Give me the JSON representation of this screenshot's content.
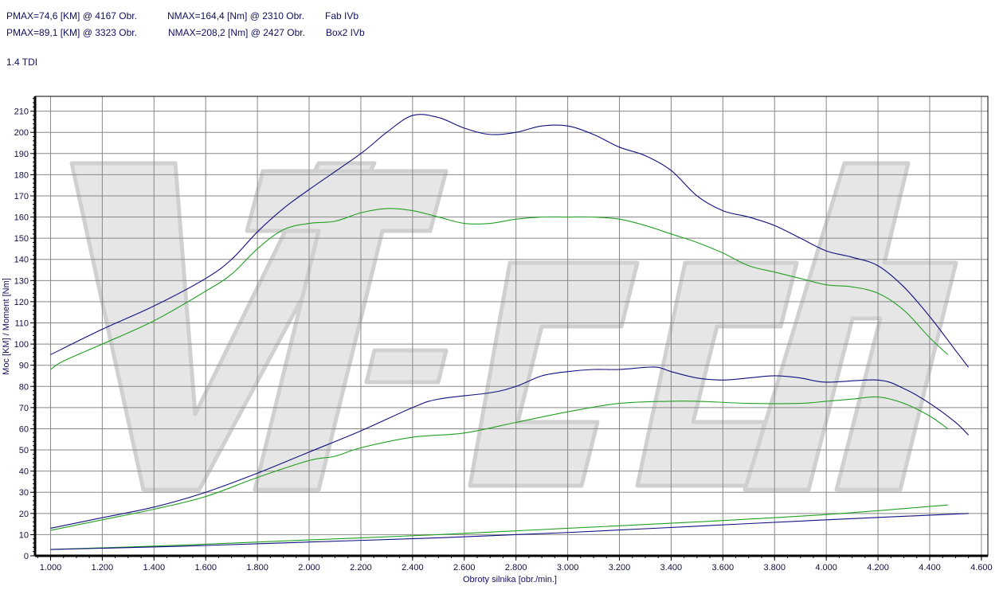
{
  "header": {
    "line1": {
      "pmax": "PMAX=74,6 [KM] @ 4167 Obr.",
      "nmax": "NMAX=164,4 [Nm] @ 2310 Obr.",
      "name": "Fab IVb"
    },
    "line2": {
      "pmax": "PMAX=89,1 [KM] @ 3323 Obr.",
      "nmax": "NMAX=208,2 [Nm] @ 2427 Obr.",
      "name": "Box2 IVb"
    },
    "engine": "1.4 TDI"
  },
  "watermark": "VTech",
  "chart_data": {
    "type": "line",
    "xlabel": "Obroty silnika [obr./min.]",
    "ylabel": "Moc [KM] / Moment [Nm]",
    "xlim": [
      940,
      4625
    ],
    "ylim": [
      0,
      217
    ],
    "xticks": [
      1000,
      1200,
      1400,
      1600,
      1800,
      2000,
      2200,
      2400,
      2600,
      2800,
      3000,
      3200,
      3400,
      3600,
      3800,
      4000,
      4200,
      4400,
      4600
    ],
    "xtick_labels": [
      "1.000",
      "1.200",
      "1.400",
      "1.600",
      "1.800",
      "2.000",
      "2.200",
      "2.400",
      "2.600",
      "2.800",
      "3.000",
      "3.200",
      "3.400",
      "3.600",
      "3.800",
      "4.000",
      "4.200",
      "4.400",
      "4.600"
    ],
    "yticks": [
      0,
      10,
      20,
      30,
      40,
      50,
      60,
      70,
      80,
      90,
      100,
      110,
      120,
      130,
      140,
      150,
      160,
      170,
      180,
      190,
      200,
      210
    ],
    "grid": true,
    "colors": {
      "box2": "#101080",
      "fab": "#22a022"
    },
    "series": [
      {
        "color": "#101080",
        "points": [
          [
            1000,
            95
          ],
          [
            1200,
            107
          ],
          [
            1400,
            118
          ],
          [
            1600,
            131
          ],
          [
            1700,
            140
          ],
          [
            1800,
            153
          ],
          [
            1900,
            164
          ],
          [
            2000,
            173
          ],
          [
            2200,
            190
          ],
          [
            2300,
            200
          ],
          [
            2400,
            208
          ],
          [
            2500,
            207
          ],
          [
            2600,
            202
          ],
          [
            2700,
            199
          ],
          [
            2800,
            200
          ],
          [
            2900,
            203
          ],
          [
            3000,
            203
          ],
          [
            3100,
            199
          ],
          [
            3200,
            193
          ],
          [
            3300,
            189
          ],
          [
            3400,
            182
          ],
          [
            3500,
            170
          ],
          [
            3600,
            163
          ],
          [
            3700,
            160
          ],
          [
            3800,
            156
          ],
          [
            3900,
            150
          ],
          [
            4000,
            144
          ],
          [
            4100,
            141
          ],
          [
            4200,
            137
          ],
          [
            4300,
            127
          ],
          [
            4400,
            113
          ],
          [
            4500,
            97
          ],
          [
            4550,
            89
          ]
        ]
      },
      {
        "color": "#22a022",
        "points": [
          [
            1000,
            88
          ],
          [
            1050,
            92
          ],
          [
            1200,
            100
          ],
          [
            1400,
            111
          ],
          [
            1600,
            125
          ],
          [
            1700,
            133
          ],
          [
            1800,
            145
          ],
          [
            1900,
            154
          ],
          [
            2000,
            157
          ],
          [
            2100,
            158
          ],
          [
            2200,
            162
          ],
          [
            2300,
            164
          ],
          [
            2400,
            163
          ],
          [
            2500,
            160
          ],
          [
            2600,
            157
          ],
          [
            2700,
            157
          ],
          [
            2800,
            159
          ],
          [
            2900,
            160
          ],
          [
            3000,
            160
          ],
          [
            3100,
            160
          ],
          [
            3200,
            159
          ],
          [
            3300,
            156
          ],
          [
            3400,
            152
          ],
          [
            3500,
            148
          ],
          [
            3600,
            143
          ],
          [
            3700,
            137
          ],
          [
            3800,
            134
          ],
          [
            3900,
            131
          ],
          [
            4000,
            128
          ],
          [
            4100,
            127
          ],
          [
            4200,
            124
          ],
          [
            4300,
            116
          ],
          [
            4400,
            103
          ],
          [
            4470,
            95
          ]
        ]
      },
      {
        "color": "#101080",
        "points": [
          [
            1000,
            13
          ],
          [
            1200,
            18
          ],
          [
            1400,
            23
          ],
          [
            1600,
            30
          ],
          [
            1800,
            39
          ],
          [
            2000,
            49
          ],
          [
            2200,
            59
          ],
          [
            2400,
            70
          ],
          [
            2500,
            74
          ],
          [
            2700,
            77
          ],
          [
            2800,
            80
          ],
          [
            2900,
            85
          ],
          [
            3000,
            87
          ],
          [
            3100,
            88
          ],
          [
            3200,
            88
          ],
          [
            3300,
            89
          ],
          [
            3350,
            89
          ],
          [
            3400,
            87
          ],
          [
            3500,
            84
          ],
          [
            3600,
            83
          ],
          [
            3700,
            84
          ],
          [
            3800,
            85
          ],
          [
            3900,
            84
          ],
          [
            4000,
            82
          ],
          [
            4200,
            83
          ],
          [
            4300,
            79
          ],
          [
            4400,
            72
          ],
          [
            4500,
            63
          ],
          [
            4550,
            57
          ]
        ]
      },
      {
        "color": "#22a022",
        "points": [
          [
            1000,
            12
          ],
          [
            1200,
            17
          ],
          [
            1400,
            22
          ],
          [
            1600,
            28
          ],
          [
            1800,
            37
          ],
          [
            2000,
            45
          ],
          [
            2100,
            47
          ],
          [
            2200,
            51
          ],
          [
            2400,
            56
          ],
          [
            2600,
            58
          ],
          [
            2800,
            63
          ],
          [
            3000,
            68
          ],
          [
            3200,
            72
          ],
          [
            3400,
            73
          ],
          [
            3500,
            73
          ],
          [
            3700,
            72
          ],
          [
            3900,
            72
          ],
          [
            4000,
            73
          ],
          [
            4100,
            74
          ],
          [
            4200,
            75
          ],
          [
            4300,
            72
          ],
          [
            4400,
            66
          ],
          [
            4470,
            60
          ]
        ]
      },
      {
        "color": "#22a022",
        "points": [
          [
            1000,
            3
          ],
          [
            1500,
            5
          ],
          [
            2000,
            7.5
          ],
          [
            2500,
            10
          ],
          [
            3000,
            13
          ],
          [
            3500,
            16
          ],
          [
            4000,
            19.5
          ],
          [
            4470,
            24
          ]
        ]
      },
      {
        "color": "#101080",
        "points": [
          [
            1000,
            3
          ],
          [
            1500,
            4.5
          ],
          [
            2000,
            6.5
          ],
          [
            2500,
            8.5
          ],
          [
            3000,
            11
          ],
          [
            3500,
            14
          ],
          [
            4000,
            17
          ],
          [
            4550,
            20
          ]
        ]
      }
    ]
  }
}
